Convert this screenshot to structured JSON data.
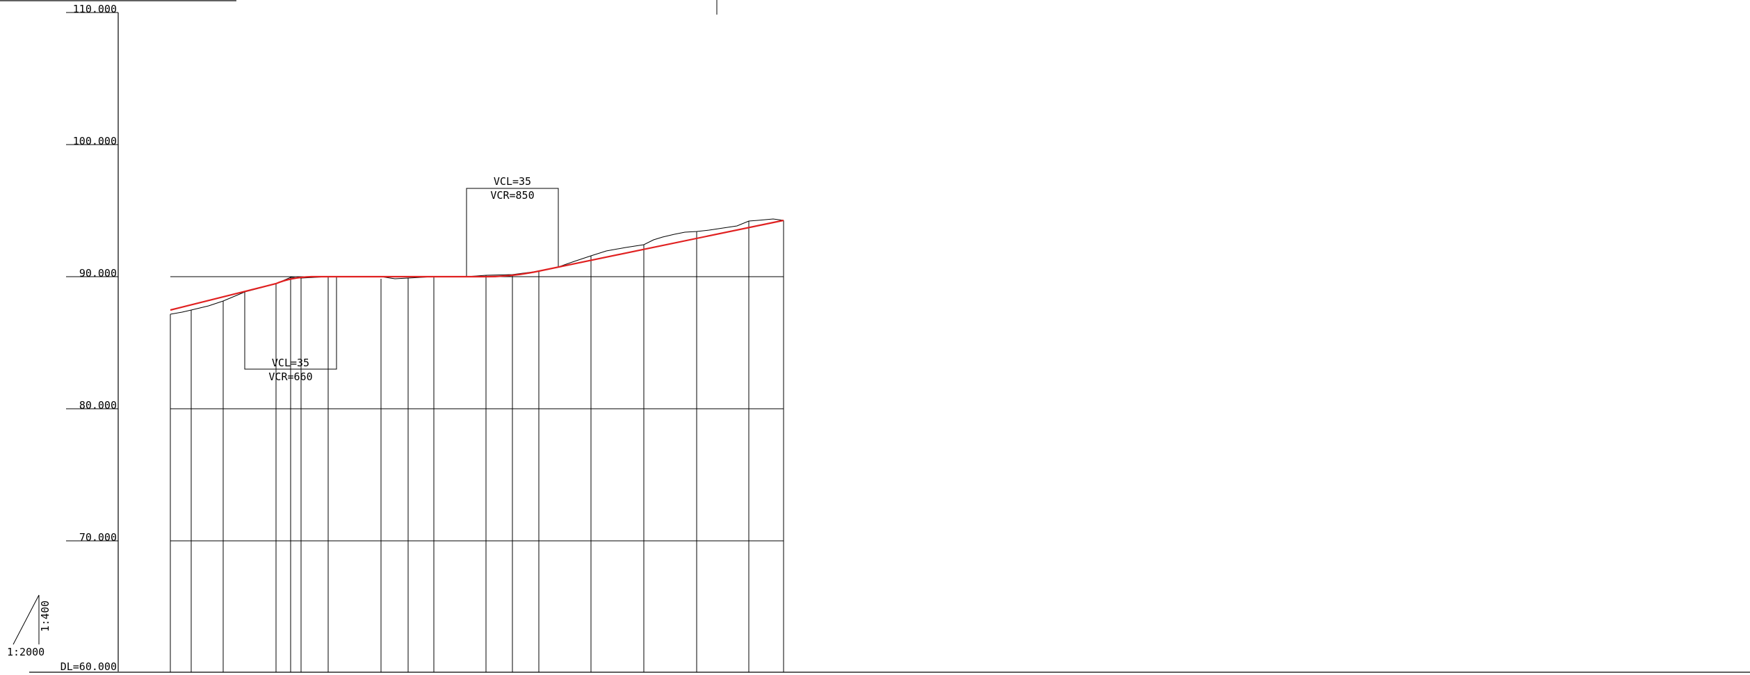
{
  "axis": {
    "labels": [
      "110.000",
      "100.000",
      "90.000",
      "80.000",
      "70.000"
    ],
    "datum_label": "DL=60.000"
  },
  "scale": {
    "vertical": "1:400",
    "horizontal": "1:2000"
  },
  "curves": [
    {
      "vcl": "VCL=35",
      "vcr": "VCR=660"
    },
    {
      "vcl": "VCL=35",
      "vcr": "VCR=850"
    }
  ],
  "colors": {
    "design_line": "#e02020",
    "ground_line": "#000000",
    "grid_line": "#000000"
  }
}
